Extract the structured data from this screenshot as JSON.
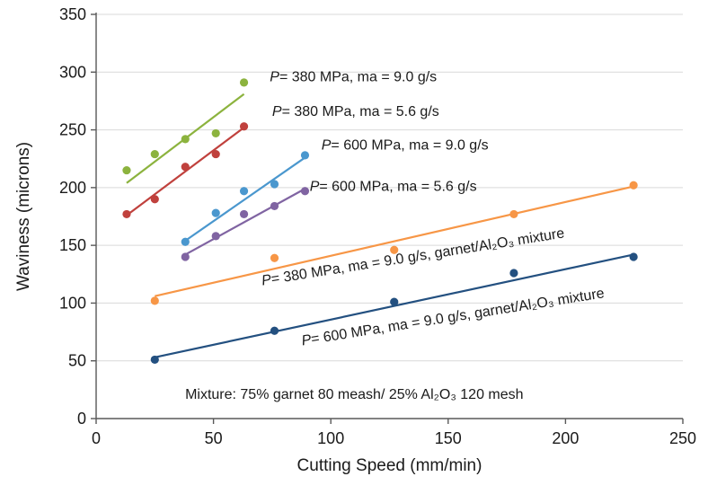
{
  "chart_data": {
    "type": "scatter",
    "title": "",
    "xlabel": "Cutting Speed (mm/min)",
    "ylabel": "Waviness (microns)",
    "xlim": [
      0,
      250
    ],
    "ylim": [
      0,
      350
    ],
    "xticks": [
      0,
      50,
      100,
      150,
      200,
      250
    ],
    "yticks": [
      0,
      50,
      100,
      150,
      200,
      250,
      300,
      350
    ],
    "grid": "horizontal",
    "legend_position": "none (inline annotations)",
    "series": [
      {
        "name": "P= 380 MPa, ma = 9.0 g/s",
        "color": "#8CB33E",
        "points": [
          [
            13,
            215
          ],
          [
            25,
            229
          ],
          [
            38,
            242
          ],
          [
            51,
            247
          ],
          [
            63,
            291
          ]
        ],
        "trend": [
          [
            13,
            204
          ],
          [
            63,
            281
          ]
        ]
      },
      {
        "name": "P= 380 MPa, ma = 5.6 g/s",
        "color": "#C0413D",
        "points": [
          [
            13,
            177
          ],
          [
            25,
            190
          ],
          [
            38,
            218
          ],
          [
            51,
            229
          ],
          [
            63,
            253
          ]
        ],
        "trend": [
          [
            13,
            176
          ],
          [
            63,
            252
          ]
        ]
      },
      {
        "name": "P= 600 MPa, ma = 9.0 g/s",
        "color": "#4A97CE",
        "points": [
          [
            38,
            153
          ],
          [
            51,
            178
          ],
          [
            63,
            197
          ],
          [
            76,
            203
          ],
          [
            89,
            228
          ]
        ],
        "trend": [
          [
            38,
            154
          ],
          [
            89,
            226
          ]
        ]
      },
      {
        "name": "P= 600 MPa, ma = 5.6 g/s",
        "color": "#8064A2",
        "points": [
          [
            38,
            140
          ],
          [
            51,
            158
          ],
          [
            63,
            177
          ],
          [
            76,
            184
          ],
          [
            89,
            197
          ]
        ],
        "trend": [
          [
            38,
            142
          ],
          [
            89,
            199
          ]
        ]
      },
      {
        "name": "P= 380 MPa, ma = 9.0 g/s, garnet/Al₂O₃ mixture",
        "color": "#F79646",
        "points": [
          [
            25,
            102
          ],
          [
            76,
            139
          ],
          [
            127,
            146
          ],
          [
            178,
            177
          ],
          [
            229,
            202
          ]
        ],
        "trend": [
          [
            25,
            106
          ],
          [
            229,
            201
          ]
        ]
      },
      {
        "name": "P= 600 MPa, ma = 9.0 g/s, garnet/Al₂O₃ mixture",
        "color": "#235080",
        "points": [
          [
            25,
            51
          ],
          [
            76,
            76
          ],
          [
            127,
            101
          ],
          [
            178,
            126
          ],
          [
            229,
            140
          ]
        ],
        "trend": [
          [
            25,
            53
          ],
          [
            229,
            142
          ]
        ]
      }
    ],
    "annotations": [
      {
        "text": "P= 380 MPa, ma = 9.0 g/s",
        "x": 74,
        "y": 296,
        "anchor": "start",
        "rotate": 0
      },
      {
        "text": "P= 380 MPa, ma = 5.6 g/s",
        "x": 75,
        "y": 266,
        "anchor": "start",
        "rotate": 0
      },
      {
        "text": "P= 600 MPa, ma = 9.0 g/s",
        "x": 96,
        "y": 237,
        "anchor": "start",
        "rotate": 0
      },
      {
        "text": "P= 600 MPa, ma = 5.6 g/s",
        "x": 91,
        "y": 201,
        "anchor": "start",
        "rotate": 0
      },
      {
        "text": "P= 380 MPa, ma = 9.0 g/s, garnet/Al₂O₃ mixture",
        "x": 135,
        "y": 140,
        "anchor": "middle",
        "rotate": -9
      },
      {
        "text": "P= 600 MPa, ma = 9.0 g/s, garnet/Al₂O₃ mixture",
        "x": 152,
        "y": 88,
        "anchor": "middle",
        "rotate": -9
      },
      {
        "text": "Mixture: 75% garnet 80 meash/ 25% Al₂O₃ 120 mesh",
        "x": 110,
        "y": 21,
        "anchor": "middle",
        "rotate": 0
      }
    ],
    "colors": {
      "background": "#ffffff",
      "grid": "#d9d9d9",
      "axis": "#595959",
      "text": "#1a1a1a"
    }
  }
}
